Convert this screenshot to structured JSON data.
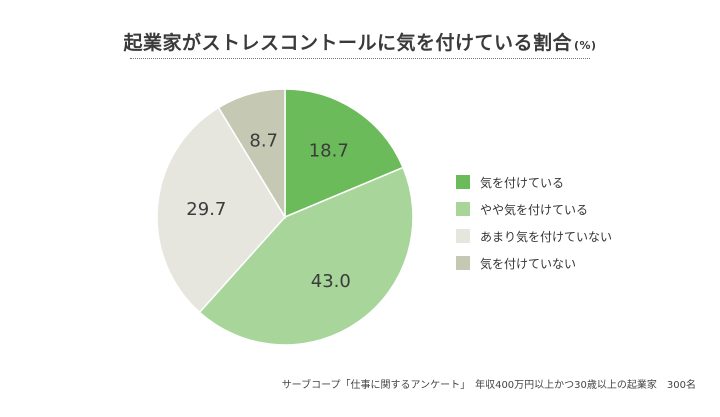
{
  "chart_data": {
    "type": "pie",
    "title": "起業家がストレスコントールに気を付けている割合",
    "unit": "(%)",
    "categories": [
      "気を付けている",
      "やや気を付けている",
      "あまり気を付けていない",
      "気を付けていない"
    ],
    "values": [
      18.7,
      43.0,
      29.7,
      8.7
    ],
    "value_labels": [
      "18.7",
      "43.0",
      "29.7",
      "8.7"
    ],
    "colors": [
      "#6cbb5a",
      "#a8d59a",
      "#e6e6df",
      "#c5c8b3"
    ],
    "start_angle": "12 o'clock",
    "direction": "clockwise",
    "legend_position": "right"
  },
  "source_note": "サーブコープ「仕事に関するアンケート」　年収400万円以上かつ30歳以上の起業家　300名"
}
